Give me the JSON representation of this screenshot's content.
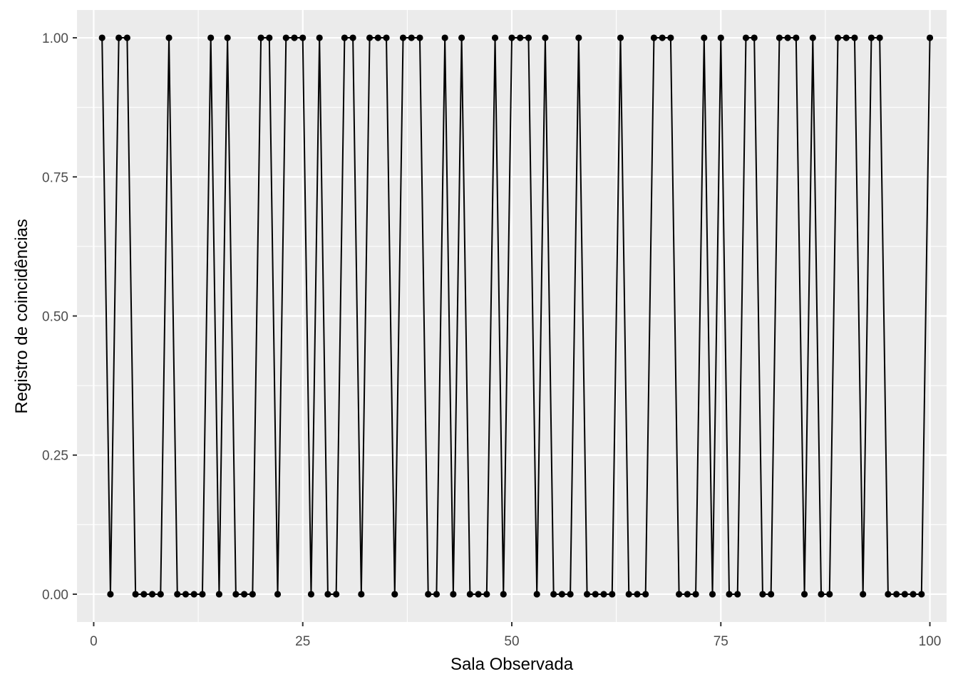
{
  "chart_data": {
    "type": "line",
    "title": "",
    "xlabel": "Sala Observada",
    "ylabel": "Registro de coincidências",
    "xlim": [
      -2,
      102
    ],
    "ylim": [
      -0.05,
      1.05
    ],
    "x_ticks": [
      0,
      25,
      50,
      75,
      100
    ],
    "x_tick_labels": [
      "0",
      "25",
      "50",
      "75",
      "100"
    ],
    "y_ticks": [
      0,
      0.25,
      0.5,
      0.75,
      1
    ],
    "y_tick_labels": [
      "0.00",
      "0.25",
      "0.50",
      "0.75",
      "1.00"
    ],
    "grid": true,
    "markers": true,
    "colors": {
      "panel_background": "#ebebeb",
      "grid": "#ffffff",
      "series": "#000000",
      "tick_label": "#4d4d4d",
      "tick_mark": "#333333"
    },
    "x": [
      1,
      2,
      3,
      4,
      5,
      6,
      7,
      8,
      9,
      10,
      11,
      12,
      13,
      14,
      15,
      16,
      17,
      18,
      19,
      20,
      21,
      22,
      23,
      24,
      25,
      26,
      27,
      28,
      29,
      30,
      31,
      32,
      33,
      34,
      35,
      36,
      37,
      38,
      39,
      40,
      41,
      42,
      43,
      44,
      45,
      46,
      47,
      48,
      49,
      50,
      51,
      52,
      53,
      54,
      55,
      56,
      57,
      58,
      59,
      60,
      61,
      62,
      63,
      64,
      65,
      66,
      67,
      68,
      69,
      70,
      71,
      72,
      73,
      74,
      75,
      76,
      77,
      78,
      79,
      80,
      81,
      82,
      83,
      84,
      85,
      86,
      87,
      88,
      89,
      90,
      91,
      92,
      93,
      94,
      95,
      96,
      97,
      98,
      99,
      100
    ],
    "y": [
      1,
      0,
      1,
      1,
      0,
      0,
      0,
      0,
      1,
      0,
      0,
      0,
      0,
      1,
      0,
      1,
      0,
      0,
      0,
      1,
      1,
      0,
      1,
      1,
      1,
      0,
      1,
      0,
      0,
      1,
      1,
      0,
      1,
      1,
      1,
      0,
      1,
      1,
      1,
      0,
      0,
      1,
      0,
      1,
      0,
      0,
      0,
      1,
      0,
      1,
      1,
      1,
      0,
      1,
      0,
      0,
      0,
      1,
      0,
      0,
      0,
      0,
      1,
      0,
      0,
      0,
      1,
      1,
      1,
      0,
      0,
      0,
      1,
      0,
      1,
      0,
      0,
      1,
      1,
      0,
      0,
      1,
      1,
      1,
      0,
      1,
      0,
      0,
      1,
      1,
      1,
      0,
      1,
      1,
      0,
      0,
      0,
      0,
      0,
      1
    ]
  }
}
